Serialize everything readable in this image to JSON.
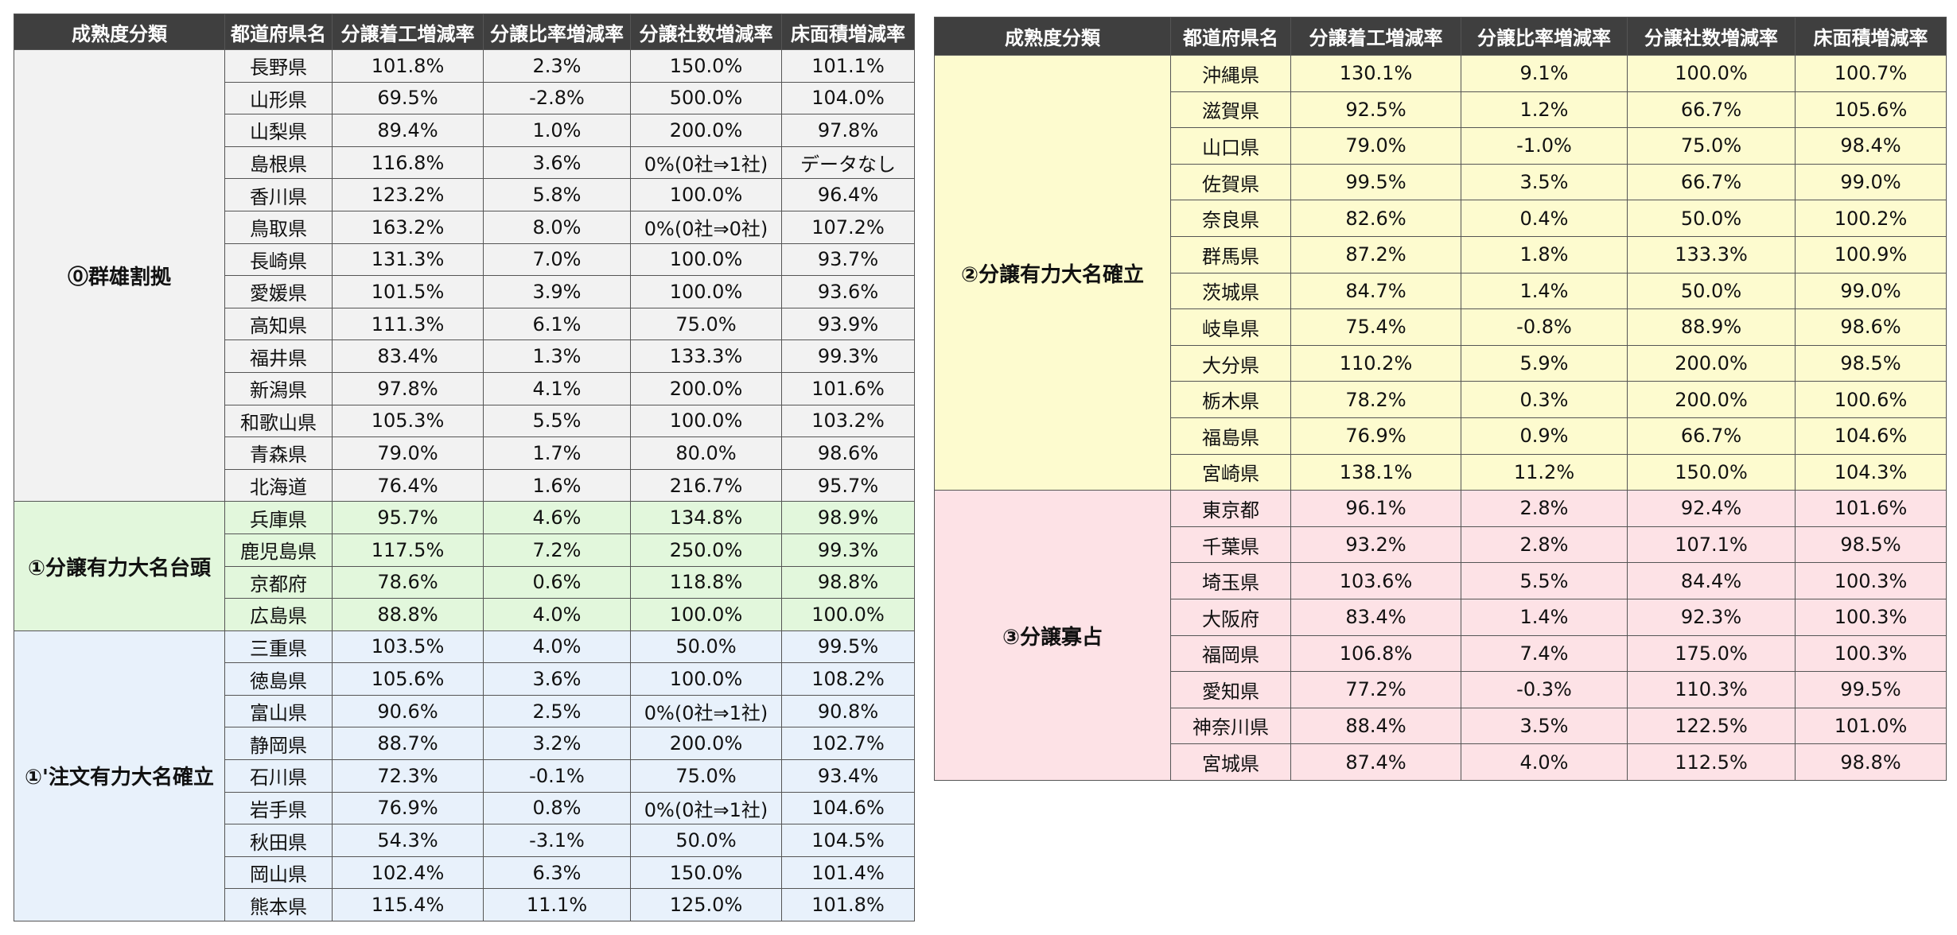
{
  "left_table": {
    "columns": [
      "成熟度分類",
      "都道府県名",
      "分譲着工増減率",
      "分譲比率増減率",
      "分譲社数増減率",
      "床面積増減率"
    ],
    "groups": [
      {
        "category": "⓪群雄割拠",
        "color": "#f2f2f2",
        "rows": [
          [
            "長野県",
            "101.8%",
            "2.3%",
            "150.0%",
            "101.1%"
          ],
          [
            "山形県",
            "69.5%",
            "-2.8%",
            "500.0%",
            "104.0%"
          ],
          [
            "山梨県",
            "89.4%",
            "1.0%",
            "200.0%",
            "97.8%"
          ],
          [
            "島根県",
            "116.8%",
            "3.6%",
            "0%(0社⇒1社)",
            "データなし"
          ],
          [
            "香川県",
            "123.2%",
            "5.8%",
            "100.0%",
            "96.4%"
          ],
          [
            "鳥取県",
            "163.2%",
            "8.0%",
            "0%(0社⇒0社)",
            "107.2%"
          ],
          [
            "長崎県",
            "131.3%",
            "7.0%",
            "100.0%",
            "93.7%"
          ],
          [
            "愛媛県",
            "101.5%",
            "3.9%",
            "100.0%",
            "93.6%"
          ],
          [
            "高知県",
            "111.3%",
            "6.1%",
            "75.0%",
            "93.9%"
          ],
          [
            "福井県",
            "83.4%",
            "1.3%",
            "133.3%",
            "99.3%"
          ],
          [
            "新潟県",
            "97.8%",
            "4.1%",
            "200.0%",
            "101.6%"
          ],
          [
            "和歌山県",
            "105.3%",
            "5.5%",
            "100.0%",
            "103.2%"
          ],
          [
            "青森県",
            "79.0%",
            "1.7%",
            "80.0%",
            "98.6%"
          ],
          [
            "北海道",
            "76.4%",
            "1.6%",
            "216.7%",
            "95.7%"
          ]
        ]
      },
      {
        "category": "①分譲有力大名台頭",
        "color": "#e2f7dc",
        "rows": [
          [
            "兵庫県",
            "95.7%",
            "4.6%",
            "134.8%",
            "98.9%"
          ],
          [
            "鹿児島県",
            "117.5%",
            "7.2%",
            "250.0%",
            "99.3%"
          ],
          [
            "京都府",
            "78.6%",
            "0.6%",
            "118.8%",
            "98.8%"
          ],
          [
            "広島県",
            "88.8%",
            "4.0%",
            "100.0%",
            "100.0%"
          ]
        ]
      },
      {
        "category": "①'注文有力大名確立",
        "color": "#e8f1fb",
        "rows": [
          [
            "三重県",
            "103.5%",
            "4.0%",
            "50.0%",
            "99.5%"
          ],
          [
            "徳島県",
            "105.6%",
            "3.6%",
            "100.0%",
            "108.2%"
          ],
          [
            "富山県",
            "90.6%",
            "2.5%",
            "0%(0社⇒1社)",
            "90.8%"
          ],
          [
            "静岡県",
            "88.7%",
            "3.2%",
            "200.0%",
            "102.7%"
          ],
          [
            "石川県",
            "72.3%",
            "-0.1%",
            "75.0%",
            "93.4%"
          ],
          [
            "岩手県",
            "76.9%",
            "0.8%",
            "0%(0社⇒1社)",
            "104.6%"
          ],
          [
            "秋田県",
            "54.3%",
            "-3.1%",
            "50.0%",
            "104.5%"
          ],
          [
            "岡山県",
            "102.4%",
            "6.3%",
            "150.0%",
            "101.4%"
          ],
          [
            "熊本県",
            "115.4%",
            "11.1%",
            "125.0%",
            "101.8%"
          ]
        ]
      }
    ]
  },
  "right_table": {
    "columns": [
      "成熟度分類",
      "都道府県名",
      "分譲着工増減率",
      "分譲比率増減率",
      "分譲社数増減率",
      "床面積増減率"
    ],
    "groups": [
      {
        "category": "②分譲有力大名確立",
        "color": "#fdfbcf",
        "rows": [
          [
            "沖縄県",
            "130.1%",
            "9.1%",
            "100.0%",
            "100.7%"
          ],
          [
            "滋賀県",
            "92.5%",
            "1.2%",
            "66.7%",
            "105.6%"
          ],
          [
            "山口県",
            "79.0%",
            "-1.0%",
            "75.0%",
            "98.4%"
          ],
          [
            "佐賀県",
            "99.5%",
            "3.5%",
            "66.7%",
            "99.0%"
          ],
          [
            "奈良県",
            "82.6%",
            "0.4%",
            "50.0%",
            "100.2%"
          ],
          [
            "群馬県",
            "87.2%",
            "1.8%",
            "133.3%",
            "100.9%"
          ],
          [
            "茨城県",
            "84.7%",
            "1.4%",
            "50.0%",
            "99.0%"
          ],
          [
            "岐阜県",
            "75.4%",
            "-0.8%",
            "88.9%",
            "98.6%"
          ],
          [
            "大分県",
            "110.2%",
            "5.9%",
            "200.0%",
            "98.5%"
          ],
          [
            "栃木県",
            "78.2%",
            "0.3%",
            "200.0%",
            "100.6%"
          ],
          [
            "福島県",
            "76.9%",
            "0.9%",
            "66.7%",
            "104.6%"
          ],
          [
            "宮崎県",
            "138.1%",
            "11.2%",
            "150.0%",
            "104.3%"
          ]
        ]
      },
      {
        "category": "③分譲寡占",
        "color": "#fde2e6",
        "rows": [
          [
            "東京都",
            "96.1%",
            "2.8%",
            "92.4%",
            "101.6%"
          ],
          [
            "千葉県",
            "93.2%",
            "2.8%",
            "107.1%",
            "98.5%"
          ],
          [
            "埼玉県",
            "103.6%",
            "5.5%",
            "84.4%",
            "100.3%"
          ],
          [
            "大阪府",
            "83.4%",
            "1.4%",
            "92.3%",
            "100.3%"
          ],
          [
            "福岡県",
            "106.8%",
            "7.4%",
            "175.0%",
            "100.3%"
          ],
          [
            "愛知県",
            "77.2%",
            "-0.3%",
            "110.3%",
            "99.5%"
          ],
          [
            "神奈川県",
            "88.4%",
            "3.5%",
            "122.5%",
            "101.0%"
          ],
          [
            "宮城県",
            "87.4%",
            "4.0%",
            "112.5%",
            "98.8%"
          ]
        ]
      }
    ]
  }
}
